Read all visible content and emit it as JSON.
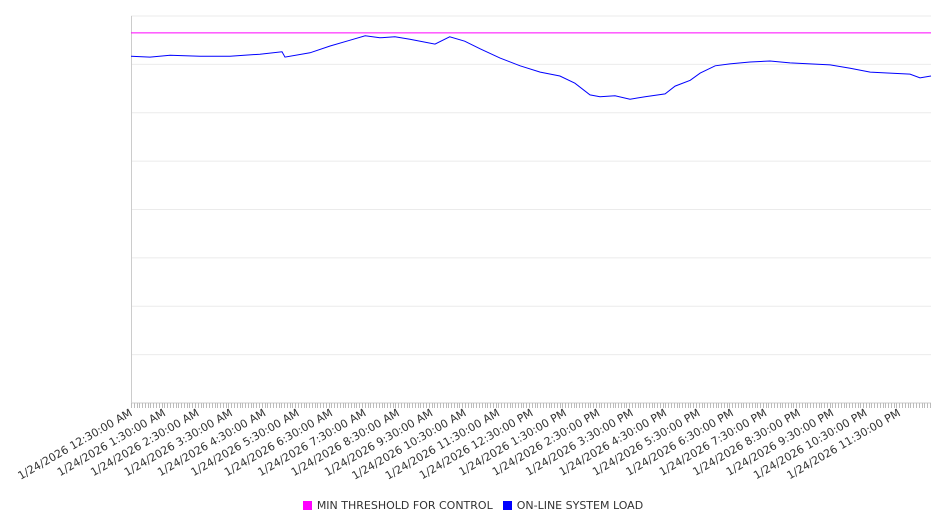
{
  "chart_data": {
    "type": "line",
    "title": "",
    "xlabel": "",
    "ylabel": "",
    "grid": true,
    "legend_position": "bottom-center",
    "ylim": [
      0,
      8
    ],
    "xlim_hours": [
      0.5,
      24.45
    ],
    "x_tick_labels": [
      "1/24/2026 12:30:00 AM",
      "1/24/2026 1:30:00 AM",
      "1/24/2026 2:30:00 AM",
      "1/24/2026 3:30:00 AM",
      "1/24/2026 4:30:00 AM",
      "1/24/2026 5:30:00 AM",
      "1/24/2026 6:30:00 AM",
      "1/24/2026 7:30:00 AM",
      "1/24/2026 8:30:00 AM",
      "1/24/2026 9:30:00 AM",
      "1/24/2026 10:30:00 AM",
      "1/24/2026 11:30:00 AM",
      "1/24/2026 12:30:00 PM",
      "1/24/2026 1:30:00 PM",
      "1/24/2026 2:30:00 PM",
      "1/24/2026 3:30:00 PM",
      "1/24/2026 4:30:00 PM",
      "1/24/2026 5:30:00 PM",
      "1/24/2026 6:30:00 PM",
      "1/24/2026 7:30:00 PM",
      "1/24/2026 8:30:00 PM",
      "1/24/2026 9:30:00 PM",
      "1/24/2026 10:30:00 PM",
      "1/24/2026 11:30:00 PM"
    ],
    "series": [
      {
        "name": "MIN THRESHOLD FOR CONTROL",
        "color": "#ff00ff",
        "points": [
          [
            0.5,
            7.65
          ],
          [
            24.45,
            7.65
          ]
        ]
      },
      {
        "name": "ON-LINE SYSTEM LOAD",
        "color": "#0000ff",
        "points": [
          [
            0.5,
            7.17
          ],
          [
            1.07,
            7.15
          ],
          [
            1.67,
            7.19
          ],
          [
            2.57,
            7.17
          ],
          [
            3.46,
            7.17
          ],
          [
            4.36,
            7.21
          ],
          [
            5.02,
            7.26
          ],
          [
            5.11,
            7.15
          ],
          [
            5.86,
            7.24
          ],
          [
            6.46,
            7.38
          ],
          [
            7.06,
            7.5
          ],
          [
            7.51,
            7.59
          ],
          [
            7.95,
            7.55
          ],
          [
            8.4,
            7.57
          ],
          [
            8.85,
            7.52
          ],
          [
            9.6,
            7.42
          ],
          [
            10.04,
            7.57
          ],
          [
            10.49,
            7.48
          ],
          [
            10.96,
            7.32
          ],
          [
            11.55,
            7.13
          ],
          [
            12.15,
            6.97
          ],
          [
            12.75,
            6.84
          ],
          [
            13.34,
            6.76
          ],
          [
            13.79,
            6.61
          ],
          [
            14.24,
            6.37
          ],
          [
            14.54,
            6.33
          ],
          [
            14.99,
            6.35
          ],
          [
            15.44,
            6.28
          ],
          [
            15.89,
            6.33
          ],
          [
            16.49,
            6.39
          ],
          [
            16.79,
            6.55
          ],
          [
            17.24,
            6.67
          ],
          [
            17.54,
            6.82
          ],
          [
            17.99,
            6.97
          ],
          [
            18.43,
            7.01
          ],
          [
            19.03,
            7.05
          ],
          [
            19.63,
            7.07
          ],
          [
            20.23,
            7.03
          ],
          [
            20.83,
            7.01
          ],
          [
            21.43,
            6.99
          ],
          [
            22.03,
            6.92
          ],
          [
            22.63,
            6.84
          ],
          [
            23.22,
            6.82
          ],
          [
            23.82,
            6.8
          ],
          [
            24.12,
            6.72
          ],
          [
            24.45,
            6.76
          ]
        ]
      }
    ]
  }
}
